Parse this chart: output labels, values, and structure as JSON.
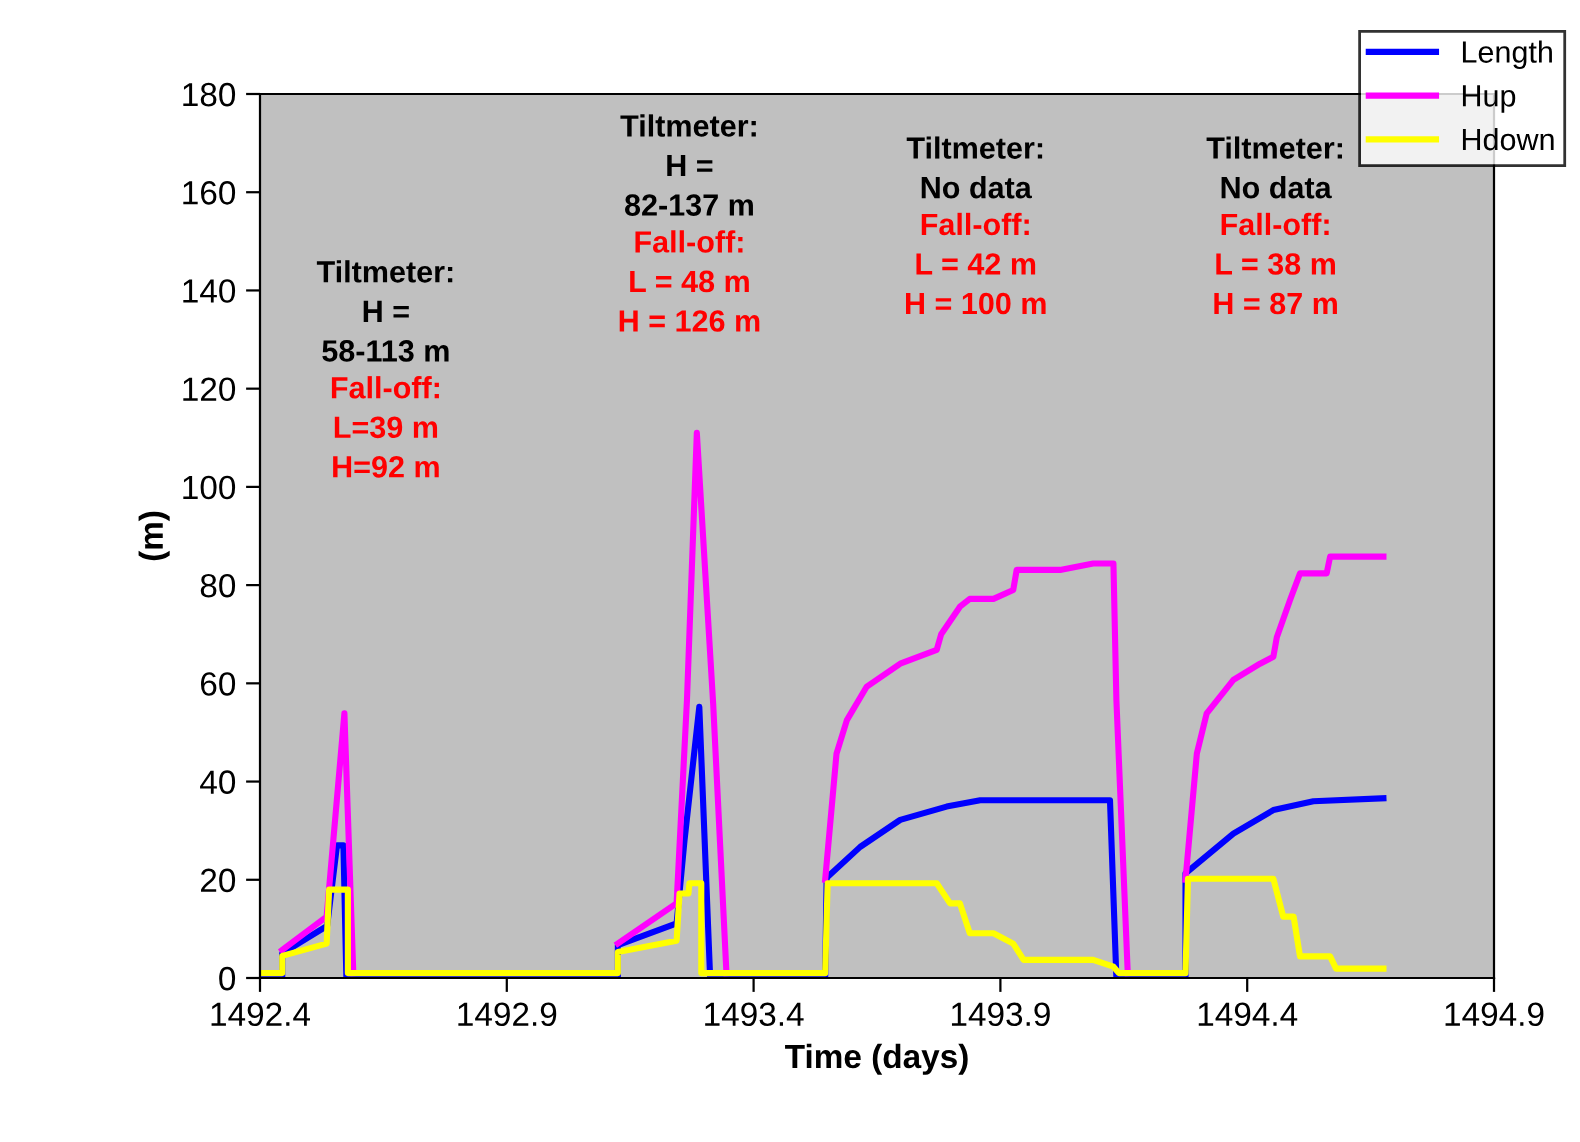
{
  "chart_data": {
    "type": "line",
    "xlabel": "Time (days)",
    "ylabel": "(m)",
    "xlim": [
      1492.4,
      1494.9
    ],
    "xticks": [
      1492.4,
      1492.9,
      1493.4,
      1493.9,
      1494.4,
      1494.9
    ],
    "ylim": [
      0,
      180
    ],
    "yticks": [
      0,
      20,
      40,
      60,
      80,
      100,
      120,
      140,
      160,
      180
    ],
    "grid": false,
    "legend": "top right",
    "marker": "none",
    "line_style": "solid",
    "annotations": [
      "Tiltmeter:\nH =\n58-113 m",
      "Fall-off:\nL=39 m\nH=92 m",
      "Tiltmeter:\nH =\n82-137 m",
      "Fall-off:\nL = 48 m\nH = 126 m",
      "Tiltmeter:\nNo data",
      "Fall-off:\nL = 42 m\nH = 100 m",
      "Tiltmeter:\nNo data",
      "Fall-off:\nL = 38 m\nH = 87 m"
    ],
    "series": [
      {
        "name": "Length",
        "color": "#0000ff",
        "x": [
          1492.4,
          1492.445,
          1492.445,
          1492.536,
          1492.556,
          1492.569,
          1492.575,
          1493.125,
          1493.125,
          1493.244,
          1493.26,
          1493.29,
          1493.312,
          1493.545,
          1493.548,
          1493.616,
          1493.697,
          1493.791,
          1493.859,
          1494.122,
          1494.135,
          1494.275,
          1494.275,
          1494.372,
          1494.453,
          1494.534,
          1494.676
        ],
        "values": [
          0,
          0,
          5,
          10.6,
          27,
          27,
          0,
          0,
          6.7,
          11.1,
          28,
          55.2,
          0,
          0,
          20.4,
          26.7,
          32.2,
          34.9,
          36.2,
          36.2,
          0,
          0,
          21.3,
          29.4,
          34.2,
          36,
          36.6
        ]
      },
      {
        "name": "Hup",
        "color": "#ff00ff",
        "x": [
          1492.445,
          1492.535,
          1492.571,
          1492.589,
          null,
          1493.125,
          1493.244,
          1493.265,
          1493.285,
          1493.318,
          1493.345,
          null,
          1493.545,
          1493.568,
          1493.589,
          1493.629,
          1493.697,
          1493.771,
          1493.78,
          1493.818,
          1493.838,
          1493.886,
          1493.926,
          1493.933,
          1494.021,
          1494.088,
          1494.129,
          1494.135,
          1494.158,
          null,
          1494.275,
          1494.298,
          1494.318,
          1494.372,
          1494.426,
          1494.453,
          1494.46,
          1494.487,
          1494.507,
          1494.561,
          1494.568,
          1494.676
        ],
        "values": [
          5.7,
          12.5,
          53.9,
          1,
          null,
          7,
          15.2,
          56.6,
          111,
          56,
          1,
          null,
          20,
          45.7,
          52.5,
          59.3,
          64,
          66.8,
          70,
          75.6,
          77.2,
          77.2,
          79,
          83.1,
          83.1,
          84.4,
          84.4,
          56.6,
          1,
          null,
          20,
          45.7,
          53.9,
          60.7,
          64,
          65.4,
          69.4,
          77,
          82.4,
          82.4,
          85.8,
          85.8
        ]
      },
      {
        "name": "Hdown",
        "color": "#ffff00",
        "x": [
          1492.4,
          1492.445,
          1492.445,
          1492.535,
          1492.54,
          1492.578,
          1492.578,
          1493.125,
          1493.125,
          1493.244,
          1493.25,
          1493.268,
          1493.27,
          1493.294,
          1493.294,
          1493.545,
          1493.55,
          1493.771,
          1493.798,
          1493.818,
          1493.838,
          1493.886,
          1493.926,
          1493.947,
          1494.088,
          1494.129,
          1494.14,
          1494.275,
          1494.28,
          1494.453,
          1494.473,
          1494.494,
          1494.507,
          1494.568,
          1494.58,
          1494.676
        ],
        "values": [
          1,
          1,
          4.5,
          7,
          18,
          18,
          1,
          1,
          5.3,
          7.6,
          17.2,
          17.2,
          19.3,
          19.3,
          1,
          1,
          19.3,
          19.3,
          15.2,
          15.2,
          9.1,
          9.1,
          7,
          3.7,
          3.7,
          2.3,
          1,
          1,
          20.2,
          20.2,
          12.5,
          12.5,
          4.4,
          4.4,
          1.9,
          1.9
        ]
      }
    ]
  }
}
